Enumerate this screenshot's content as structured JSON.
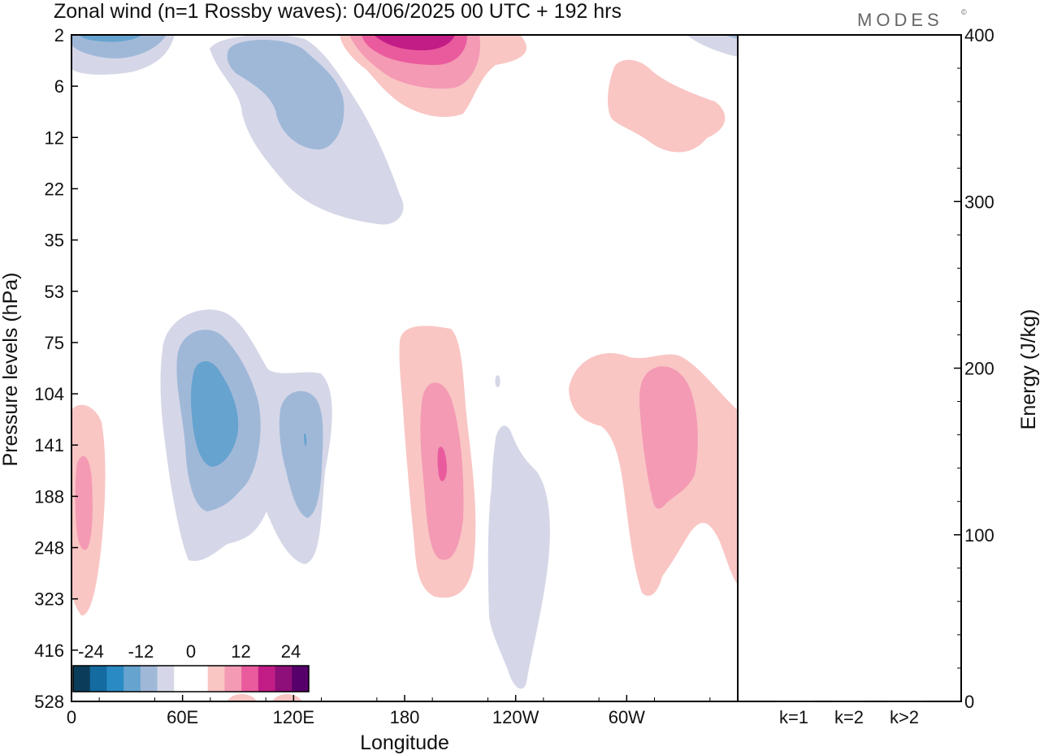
{
  "chart_data": {
    "type": "heatmap",
    "title": "Zonal wind (n=1 Rossby waves):  04/06/2025  00 UTC  + 192 hrs",
    "brand": "MODES",
    "brand_mark": "©",
    "xlabel": "Longitude",
    "ylabel": "Pressure levels (hPa)",
    "y2label": "Energy (J/kg)",
    "x_ticks": [
      {
        "lon": 0,
        "label": "0"
      },
      {
        "lon": 60,
        "label": "60E"
      },
      {
        "lon": 120,
        "label": "120E"
      },
      {
        "lon": 180,
        "label": "180"
      },
      {
        "lon": 240,
        "label": "120W"
      },
      {
        "lon": 300,
        "label": "60W"
      }
    ],
    "xlim": [
      0,
      360
    ],
    "pressure_levels": [
      "2",
      "6",
      "12",
      "22",
      "35",
      "53",
      "75",
      "104",
      "141",
      "188",
      "248",
      "323",
      "416",
      "528"
    ],
    "energy_axis": {
      "ylim": [
        0,
        400
      ],
      "major_ticks": [
        "0",
        "100",
        "200",
        "300",
        "400"
      ],
      "minor_step": 20
    },
    "energy_bars": [
      {
        "label": "k=1",
        "value": 0.4
      },
      {
        "label": "k=2",
        "value": 0.5
      },
      {
        "label": "k>2",
        "value": 0.4
      }
    ],
    "colorbar": {
      "tick_labels": [
        "-24",
        "-12",
        "0",
        "12",
        "24"
      ],
      "colors": [
        "#0b3d5b",
        "#136b9f",
        "#2a8ac3",
        "#66a3cf",
        "#a0b8d8",
        "#d5d7e8",
        "#ffffff",
        "#ffffff",
        "#f9c6c4",
        "#f49ab4",
        "#ea5b9e",
        "#c21d86",
        "#8e0f77",
        "#56006b"
      ]
    },
    "levels": {
      "neg": {
        "n1": "#d5d7e8",
        "n2": "#a0b8d8",
        "n3": "#66a3cf",
        "n4": "#2a8ac3"
      },
      "pos": {
        "p1": "#f9c6c4",
        "p2": "#f49ab4",
        "p3": "#ea5b9e",
        "p4": "#c21d86"
      }
    },
    "grid": false
  }
}
